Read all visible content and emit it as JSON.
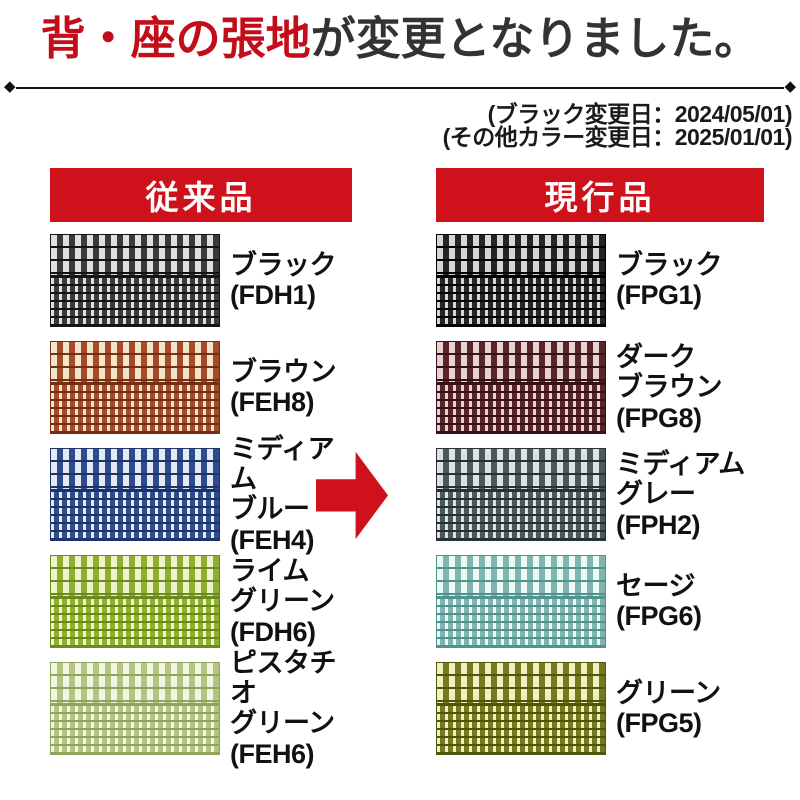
{
  "accent_red": "#ce111b",
  "title": {
    "highlight": "背・座の張地",
    "rest": "が変更となりました。"
  },
  "divider_icon": "diamond",
  "dates": [
    "(ブラック変更日：2024/05/01)",
    "(その他カラー変更日：2025/01/01)"
  ],
  "arrow_icon": "right-arrow",
  "columns": [
    {
      "header": "従来品",
      "items": [
        {
          "label": "ブラック\n(FDH1)",
          "swatch": {
            "base": "#3a3a3a",
            "lite": "#e0e0e0",
            "dark": "#141414"
          }
        },
        {
          "label": "ブラウン\n(FEH8)",
          "swatch": {
            "base": "#a34b28",
            "lite": "#f2e3cb",
            "dark": "#742e12"
          }
        },
        {
          "label": "ミディアム\nブルー\n(FEH4)",
          "swatch": {
            "base": "#2e4b8e",
            "lite": "#e3eaf4",
            "dark": "#1d3468"
          }
        },
        {
          "label": "ライム\nグリーン\n(FDH6)",
          "swatch": {
            "base": "#8fae2e",
            "lite": "#eef2cf",
            "dark": "#6a8a1e"
          }
        },
        {
          "label": "ピスタチオ\nグリーン\n(FEH6)",
          "swatch": {
            "base": "#b3c483",
            "lite": "#f3f6e3",
            "dark": "#8fa55c"
          }
        }
      ]
    },
    {
      "header": "現行品",
      "items": [
        {
          "label": "ブラック\n(FPG1)",
          "swatch": {
            "base": "#242424",
            "lite": "#d6d6d6",
            "dark": "#000000"
          }
        },
        {
          "label": "ダーク\nブラウン\n(FPG8)",
          "swatch": {
            "base": "#5a242c",
            "lite": "#e6d5cf",
            "dark": "#371117"
          }
        },
        {
          "label": "ミディアム\nグレー\n(FPH2)",
          "swatch": {
            "base": "#4b585c",
            "lite": "#dce3e2",
            "dark": "#283236"
          }
        },
        {
          "label": "セージ\n(FPG6)",
          "swatch": {
            "base": "#7fb5b0",
            "lite": "#f0faf4",
            "dark": "#4f938f"
          }
        },
        {
          "label": "グリーン\n(FPG5)",
          "swatch": {
            "base": "#74781f",
            "lite": "#eff0bd",
            "dark": "#51560e"
          }
        }
      ]
    }
  ]
}
